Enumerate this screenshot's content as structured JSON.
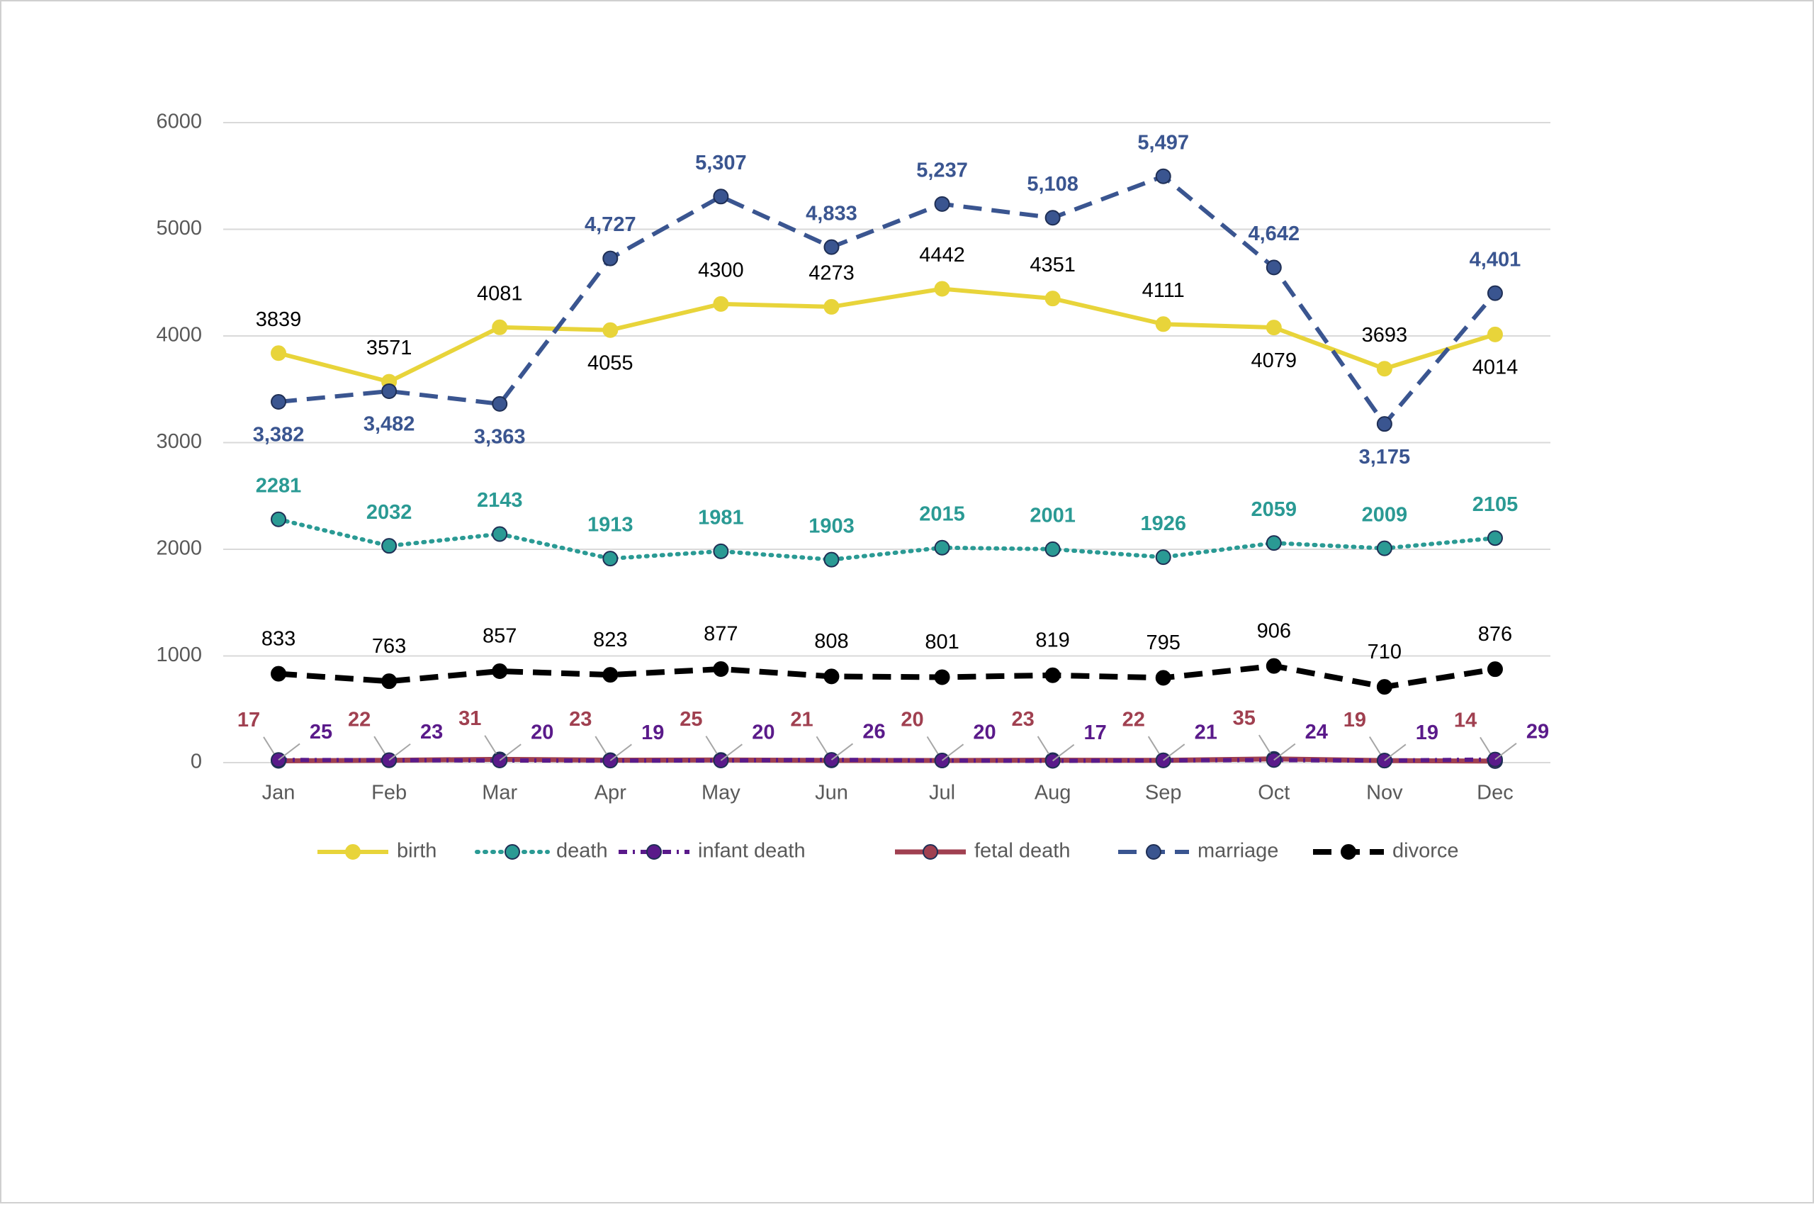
{
  "chart_data": {
    "type": "line",
    "categories": [
      "Jan",
      "Feb",
      "Mar",
      "Apr",
      "May",
      "Jun",
      "Jul",
      "Aug",
      "Sep",
      "Oct",
      "Nov",
      "Dec"
    ],
    "ylim": [
      0,
      6000
    ],
    "yticks": [
      0,
      1000,
      2000,
      3000,
      4000,
      5000,
      6000
    ],
    "grid": true,
    "legend": "bottom",
    "series": [
      {
        "name": "birth",
        "color": "#e8d43a",
        "values": [
          3839,
          3571,
          4081,
          4055,
          4300,
          4273,
          4442,
          4351,
          4111,
          4079,
          3693,
          4014
        ]
      },
      {
        "name": "death",
        "color": "#2a9a94",
        "values": [
          2281,
          2032,
          2143,
          1913,
          1981,
          1903,
          2015,
          2001,
          1926,
          2059,
          2009,
          2105
        ]
      },
      {
        "name": "infant death",
        "color": "#5a1a8a",
        "values": [
          25,
          23,
          20,
          19,
          20,
          26,
          20,
          17,
          21,
          24,
          19,
          29
        ]
      },
      {
        "name": "fetal death",
        "color": "#a04050",
        "values": [
          17,
          22,
          31,
          23,
          25,
          21,
          20,
          23,
          22,
          35,
          19,
          14
        ]
      },
      {
        "name": "marriage",
        "color": "#3a5590",
        "values": [
          3382,
          3482,
          3363,
          4727,
          5307,
          4833,
          5237,
          5108,
          5497,
          4642,
          3175,
          4401
        ],
        "value_labels": [
          "3,382",
          "3,482",
          "3,363",
          "4,727",
          "5,307",
          "4,833",
          "5,237",
          "5,108",
          "5,497",
          "4,642",
          "3,175",
          "4,401"
        ]
      },
      {
        "name": "divorce",
        "color": "#000000",
        "values": [
          833,
          763,
          857,
          823,
          877,
          808,
          801,
          819,
          795,
          906,
          710,
          876
        ]
      }
    ]
  }
}
